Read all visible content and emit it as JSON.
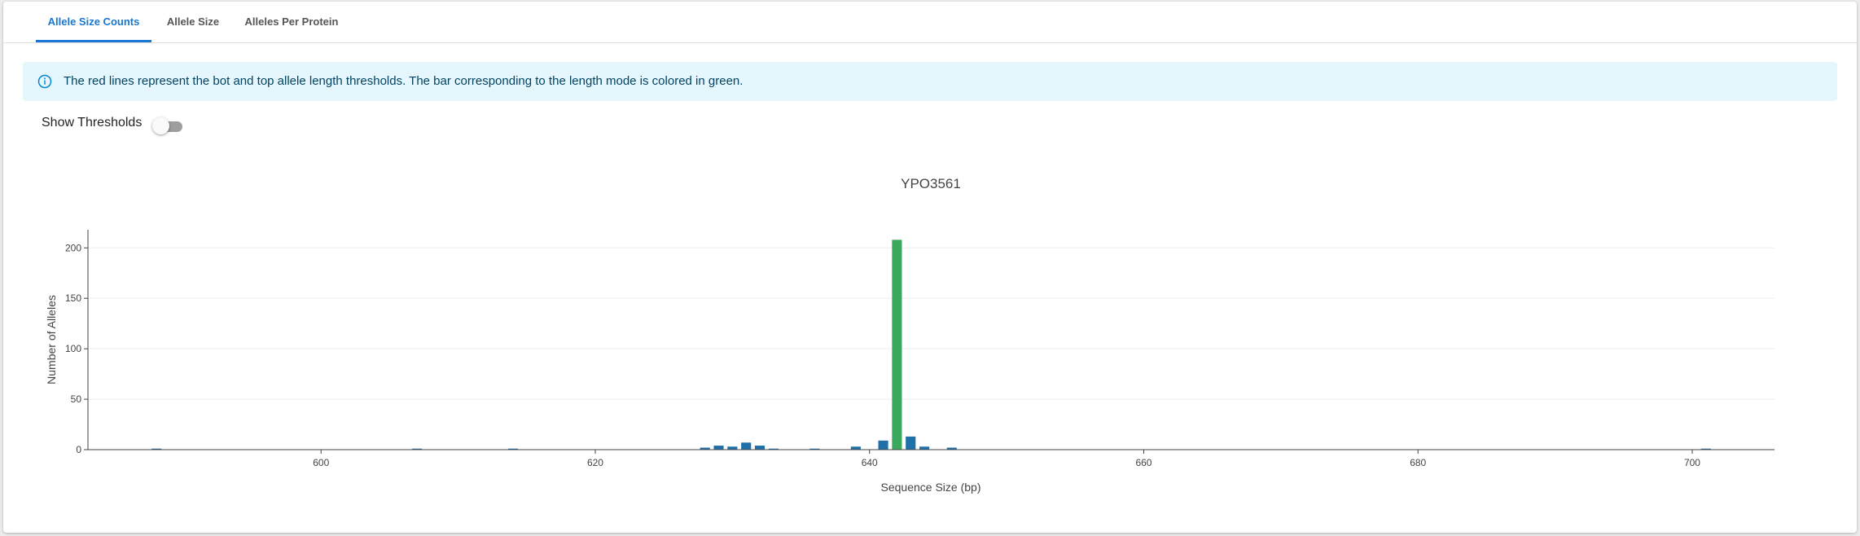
{
  "tabs": [
    {
      "label": "Allele Size Counts",
      "active": true
    },
    {
      "label": "Allele Size",
      "active": false
    },
    {
      "label": "Alleles Per Protein",
      "active": false
    }
  ],
  "alert": {
    "icon": "info-icon",
    "text": "The red lines represent the bot and top allele length thresholds. The bar corresponding to the length mode is colored in green."
  },
  "thresholds_toggle": {
    "label": "Show Thresholds",
    "checked": false
  },
  "colors": {
    "accent": "#1976d2",
    "bar": "#1f6fa8",
    "mode_bar": "#3aa95e",
    "alert_bg": "#e5f6fd",
    "alert_text": "#014361"
  },
  "chart_data": {
    "type": "bar",
    "title": "YPO3561",
    "xlabel": "Sequence Size (bp)",
    "ylabel": "Number of Alleles",
    "xlim": [
      583,
      706
    ],
    "ylim": [
      0,
      218
    ],
    "xticks": [
      600,
      620,
      640,
      660,
      680,
      700
    ],
    "yticks": [
      0,
      50,
      100,
      150,
      200
    ],
    "grid": true,
    "mode_x": 642,
    "x": [
      588,
      607,
      614,
      628,
      629,
      630,
      631,
      632,
      633,
      636,
      639,
      641,
      642,
      643,
      644,
      646,
      701
    ],
    "values": [
      1,
      1,
      1,
      2,
      4,
      3,
      7,
      4,
      1,
      1,
      3,
      9,
      208,
      13,
      3,
      2,
      1
    ]
  }
}
